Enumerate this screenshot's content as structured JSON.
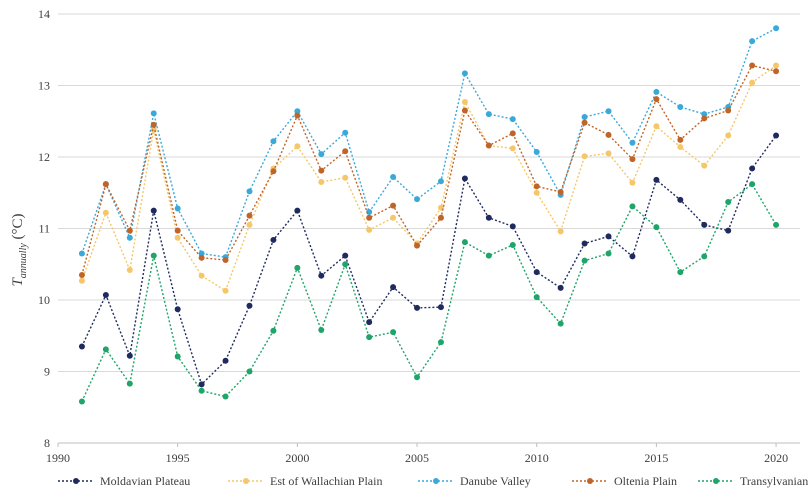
{
  "chart_data": {
    "type": "line",
    "xlabel": "",
    "ylabel": "T",
    "ylabel_subscript": "annually",
    "ylabel_unit": " (°C)",
    "xlim": [
      1990,
      2021
    ],
    "ylim": [
      8,
      14
    ],
    "xticks": [
      1990,
      1995,
      2000,
      2005,
      2010,
      2015,
      2020
    ],
    "yticks": [
      8,
      9,
      10,
      11,
      12,
      13,
      14
    ],
    "grid": "horizontal",
    "legend_position": "bottom",
    "x": [
      1991,
      1992,
      1993,
      1994,
      1995,
      1996,
      1997,
      1998,
      1999,
      2000,
      2001,
      2002,
      2003,
      2004,
      2005,
      2006,
      2007,
      2008,
      2009,
      2010,
      2011,
      2012,
      2013,
      2014,
      2015,
      2016,
      2017,
      2018,
      2019,
      2020
    ],
    "series": [
      {
        "name": "Moldavian Plateau",
        "color": "#1f2b5e",
        "values": [
          9.35,
          10.07,
          9.22,
          11.25,
          9.87,
          8.82,
          9.15,
          9.92,
          10.84,
          11.25,
          10.34,
          10.62,
          9.69,
          10.18,
          9.89,
          9.9,
          11.7,
          11.15,
          11.03,
          10.39,
          10.17,
          10.79,
          10.89,
          10.61,
          11.68,
          11.4,
          11.05,
          10.97,
          11.84,
          12.3
        ]
      },
      {
        "name": "Est of Wallachian Plain",
        "color": "#f5c76a",
        "values": [
          10.27,
          11.22,
          10.42,
          12.38,
          10.87,
          10.34,
          10.13,
          11.05,
          11.84,
          12.15,
          11.65,
          11.71,
          10.98,
          11.15,
          10.79,
          11.29,
          12.77,
          12.16,
          12.12,
          11.5,
          10.96,
          12.01,
          12.05,
          11.64,
          12.43,
          12.14,
          11.88,
          12.3,
          13.04,
          13.28
        ]
      },
      {
        "name": "Danube Valley",
        "color": "#3aa9da",
        "values": [
          10.65,
          11.62,
          10.87,
          12.61,
          11.28,
          10.65,
          10.6,
          11.52,
          12.22,
          12.64,
          12.04,
          12.34,
          11.23,
          11.72,
          11.41,
          11.66,
          13.17,
          12.6,
          12.53,
          12.07,
          11.47,
          12.56,
          12.64,
          12.2,
          12.91,
          12.7,
          12.6,
          12.7,
          13.62,
          13.8
        ]
      },
      {
        "name": "Oltenia Plain",
        "color": "#c0652a",
        "values": [
          10.35,
          11.62,
          10.97,
          12.45,
          10.97,
          10.59,
          10.56,
          11.18,
          11.8,
          12.58,
          11.81,
          12.08,
          11.15,
          11.32,
          10.76,
          11.15,
          12.65,
          12.16,
          12.33,
          11.59,
          11.51,
          12.48,
          12.31,
          11.97,
          12.81,
          12.24,
          12.54,
          12.65,
          13.28,
          13.2
        ]
      },
      {
        "name": "Transylvanian",
        "color": "#1fa469",
        "values": [
          8.58,
          9.31,
          8.83,
          10.62,
          9.21,
          8.73,
          8.65,
          9.0,
          9.57,
          10.45,
          9.58,
          10.5,
          9.48,
          9.55,
          8.92,
          9.41,
          10.81,
          10.62,
          10.77,
          10.04,
          9.67,
          10.55,
          10.65,
          11.31,
          11.02,
          10.39,
          10.61,
          11.37,
          11.62,
          11.05
        ]
      }
    ]
  }
}
